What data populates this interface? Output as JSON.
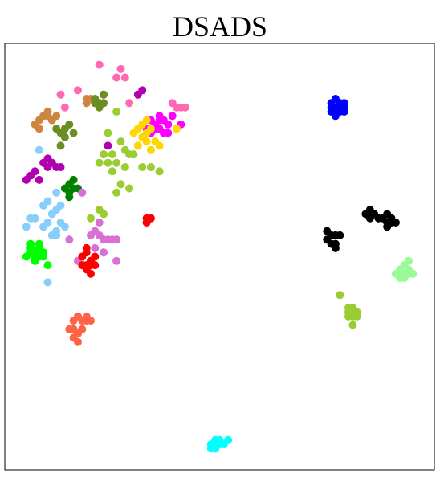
{
  "chart_data": {
    "type": "scatter",
    "title": "DSADS",
    "xlabel": "",
    "ylabel": "",
    "xlim": [
      0,
      100
    ],
    "ylim": [
      0,
      100
    ],
    "grid": false,
    "legend": "none",
    "series": [
      {
        "color": "#FF00FF",
        "points": [
          [
            33,
            80
          ],
          [
            34,
            82
          ],
          [
            35,
            81
          ],
          [
            36,
            80
          ],
          [
            37,
            82
          ],
          [
            38,
            81
          ],
          [
            34,
            79
          ],
          [
            36,
            83
          ],
          [
            37,
            79
          ],
          [
            38,
            79
          ],
          [
            39,
            83
          ],
          [
            41,
            81
          ],
          [
            35,
            80
          ],
          [
            36,
            82
          ]
        ]
      },
      {
        "color": "#FF69B4",
        "points": [
          [
            22,
            95
          ],
          [
            27,
            94
          ],
          [
            28,
            92
          ],
          [
            26,
            92
          ],
          [
            13,
            88
          ],
          [
            17,
            89
          ],
          [
            23,
            88
          ],
          [
            29,
            86
          ],
          [
            40,
            85
          ],
          [
            41,
            85
          ],
          [
            42,
            85
          ],
          [
            39,
            86
          ],
          [
            14,
            85
          ]
        ]
      },
      {
        "color": "#B000B0",
        "points": [
          [
            31,
            88
          ],
          [
            32,
            89
          ],
          [
            24,
            76
          ],
          [
            9,
            72
          ],
          [
            10,
            71
          ],
          [
            11,
            72
          ],
          [
            10,
            73
          ],
          [
            6,
            69
          ],
          [
            7,
            70
          ],
          [
            5,
            68
          ],
          [
            8,
            68
          ],
          [
            12,
            71
          ],
          [
            13,
            71
          ]
        ]
      },
      {
        "color": "#CD853F",
        "points": [
          [
            8,
            82
          ],
          [
            9,
            83
          ],
          [
            7,
            81
          ],
          [
            10,
            84
          ],
          [
            11,
            82
          ],
          [
            12,
            83
          ],
          [
            8,
            80
          ],
          [
            10,
            83
          ],
          [
            19,
            86
          ],
          [
            20,
            87
          ],
          [
            19,
            87
          ],
          [
            21,
            86
          ]
        ]
      },
      {
        "color": "#6B8E23",
        "points": [
          [
            21,
            87
          ],
          [
            22,
            86
          ],
          [
            23,
            88
          ],
          [
            22,
            85
          ],
          [
            21,
            86
          ],
          [
            23,
            86
          ],
          [
            14,
            80
          ],
          [
            15,
            81
          ],
          [
            13,
            79
          ],
          [
            12,
            80
          ],
          [
            14,
            78
          ],
          [
            13,
            76
          ],
          [
            16,
            79
          ]
        ]
      },
      {
        "color": "#FFD700",
        "points": [
          [
            31,
            80
          ],
          [
            32,
            81
          ],
          [
            33,
            79
          ],
          [
            34,
            80
          ],
          [
            32,
            78
          ],
          [
            33,
            77
          ],
          [
            35,
            77
          ],
          [
            31,
            76
          ],
          [
            34,
            75
          ],
          [
            36,
            76
          ],
          [
            33,
            82
          ],
          [
            30,
            79
          ],
          [
            40,
            80
          ]
        ]
      },
      {
        "color": "#9ACD32",
        "points": [
          [
            26,
            84
          ],
          [
            24,
            79
          ],
          [
            27,
            77
          ],
          [
            28,
            75
          ],
          [
            29,
            74
          ],
          [
            25,
            74
          ],
          [
            23,
            74
          ],
          [
            22,
            72
          ],
          [
            24,
            72
          ],
          [
            26,
            72
          ],
          [
            28,
            71
          ],
          [
            25,
            70
          ],
          [
            30,
            74
          ],
          [
            32,
            71
          ],
          [
            34,
            71
          ],
          [
            36,
            70
          ],
          [
            27,
            67
          ],
          [
            29,
            66
          ],
          [
            26,
            65
          ],
          [
            22,
            61
          ],
          [
            23,
            60
          ],
          [
            20,
            59
          ]
        ]
      },
      {
        "color": "#008000",
        "points": [
          [
            15,
            67
          ],
          [
            16,
            68
          ],
          [
            14,
            66
          ],
          [
            15,
            65
          ],
          [
            16,
            66
          ],
          [
            17,
            66
          ],
          [
            15,
            64
          ]
        ]
      },
      {
        "color": "#87CEFA",
        "points": [
          [
            8,
            75
          ],
          [
            12,
            65
          ],
          [
            10,
            63
          ],
          [
            9,
            62
          ],
          [
            13,
            62
          ],
          [
            12,
            61
          ],
          [
            11,
            60
          ],
          [
            10,
            58
          ],
          [
            13,
            58
          ],
          [
            14,
            57
          ],
          [
            12,
            56
          ],
          [
            7,
            59
          ],
          [
            6,
            59
          ],
          [
            5,
            57
          ],
          [
            9,
            57
          ],
          [
            11,
            55
          ],
          [
            12,
            55
          ],
          [
            10,
            44
          ]
        ]
      },
      {
        "color": "#DA70D6",
        "points": [
          [
            18,
            65
          ],
          [
            22,
            58
          ],
          [
            21,
            56
          ],
          [
            20,
            55
          ],
          [
            22,
            55
          ],
          [
            23,
            54
          ],
          [
            24,
            54
          ],
          [
            25,
            54
          ],
          [
            19,
            52
          ],
          [
            21,
            52
          ],
          [
            26,
            54
          ],
          [
            15,
            54
          ],
          [
            23,
            51
          ],
          [
            26,
            49
          ],
          [
            20,
            49
          ],
          [
            17,
            49
          ]
        ]
      },
      {
        "color": "#00FF00",
        "points": [
          [
            6,
            52
          ],
          [
            7,
            51
          ],
          [
            8,
            52
          ],
          [
            9,
            51
          ],
          [
            6,
            51
          ],
          [
            7,
            50
          ],
          [
            8,
            50
          ],
          [
            9,
            50
          ],
          [
            7,
            49
          ],
          [
            5,
            50
          ],
          [
            6,
            53
          ],
          [
            8,
            53
          ],
          [
            10,
            48
          ]
        ]
      },
      {
        "color": "#FF0000",
        "points": [
          [
            18,
            50
          ],
          [
            19,
            51
          ],
          [
            20,
            49
          ],
          [
            21,
            50
          ],
          [
            18,
            48
          ],
          [
            19,
            48
          ],
          [
            20,
            48
          ],
          [
            21,
            48
          ],
          [
            19,
            47
          ],
          [
            20,
            46
          ],
          [
            19,
            52
          ],
          [
            33,
            59
          ],
          [
            33,
            58
          ],
          [
            34,
            59
          ]
        ]
      },
      {
        "color": "#FF6347",
        "points": [
          [
            16,
            35
          ],
          [
            17,
            36
          ],
          [
            18,
            35
          ],
          [
            19,
            35
          ],
          [
            16,
            33
          ],
          [
            17,
            32
          ],
          [
            18,
            33
          ],
          [
            17,
            30
          ],
          [
            16,
            31
          ],
          [
            15,
            33
          ],
          [
            19,
            36
          ],
          [
            20,
            35
          ]
        ]
      },
      {
        "color": "#0000FF",
        "points": [
          [
            76,
            86
          ],
          [
            77,
            87
          ],
          [
            78,
            86
          ],
          [
            79,
            86
          ],
          [
            76,
            85
          ],
          [
            77,
            85
          ],
          [
            78,
            85
          ],
          [
            79,
            85
          ],
          [
            77,
            84
          ],
          [
            78,
            84
          ],
          [
            76,
            84
          ],
          [
            79,
            84
          ],
          [
            77,
            83
          ]
        ]
      },
      {
        "color": "#000000",
        "points": [
          [
            84,
            60
          ],
          [
            85,
            61
          ],
          [
            86,
            60
          ],
          [
            87,
            59
          ],
          [
            88,
            59
          ],
          [
            89,
            60
          ],
          [
            90,
            59
          ],
          [
            89,
            58
          ],
          [
            90,
            58
          ],
          [
            89,
            57
          ],
          [
            91,
            58
          ],
          [
            85,
            59
          ],
          [
            75,
            56
          ],
          [
            76,
            55
          ],
          [
            77,
            55
          ],
          [
            75,
            54
          ],
          [
            76,
            53
          ],
          [
            77,
            53
          ],
          [
            78,
            55
          ],
          [
            77,
            52
          ]
        ]
      },
      {
        "color": "#98FB98",
        "points": [
          [
            92,
            47
          ],
          [
            93,
            48
          ],
          [
            94,
            47
          ],
          [
            92,
            46
          ],
          [
            93,
            46
          ],
          [
            94,
            46
          ],
          [
            91,
            46
          ],
          [
            92,
            45
          ],
          [
            95,
            46
          ],
          [
            93,
            45
          ],
          [
            94,
            49
          ]
        ]
      },
      {
        "color": "#9ACD32",
        "points": [
          [
            78,
            41
          ],
          [
            80,
            38
          ],
          [
            81,
            38
          ],
          [
            80,
            37
          ],
          [
            81,
            37
          ],
          [
            82,
            37
          ],
          [
            80,
            36
          ],
          [
            81,
            36
          ],
          [
            82,
            36
          ],
          [
            81,
            34
          ]
        ]
      },
      {
        "color": "#00FFFF",
        "points": [
          [
            49,
            7
          ],
          [
            50,
            7
          ],
          [
            48,
            6
          ],
          [
            49,
            6
          ],
          [
            50,
            6
          ],
          [
            51,
            6
          ],
          [
            48,
            5
          ],
          [
            49,
            5
          ],
          [
            52,
            7
          ]
        ]
      }
    ]
  }
}
